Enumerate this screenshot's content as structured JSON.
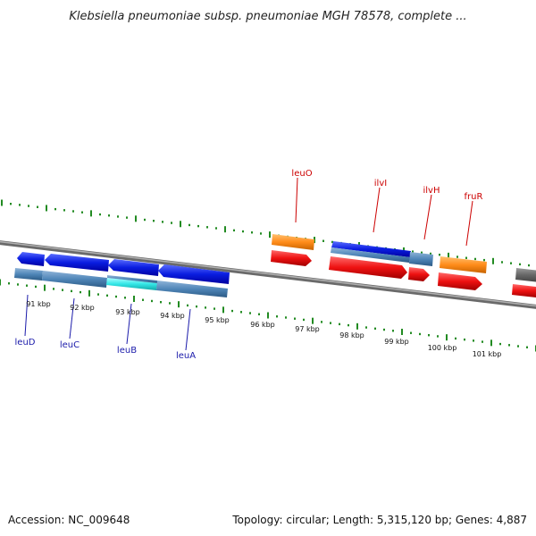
{
  "title": "Klebsiella pneumoniae subsp. pneumoniae MGH 78578, complete ...",
  "footer": {
    "accession": "Accession: NC_009648",
    "summary": "Topology: circular; Length: 5,315,120 bp; Genes: 4,887"
  },
  "ruler": [
    {
      "label": "91 kbp"
    },
    {
      "label": "92 kbp"
    },
    {
      "label": "93 kbp"
    },
    {
      "label": "94 kbp"
    },
    {
      "label": "95 kbp"
    },
    {
      "label": "96 kbp"
    },
    {
      "label": "97 kbp"
    },
    {
      "label": "98 kbp"
    },
    {
      "label": "99 kbp"
    },
    {
      "label": "100 kbp"
    },
    {
      "label": "101 kbp"
    }
  ],
  "genes_top": [
    {
      "name": "leuO",
      "color": "#cc0000"
    },
    {
      "name": "ilvI",
      "color": "#cc0000"
    },
    {
      "name": "ilvH",
      "color": "#cc0000"
    },
    {
      "name": "fruR",
      "color": "#cc0000"
    }
  ],
  "genes_bottom": [
    {
      "name": "leuD",
      "color": "#1a1aaa"
    },
    {
      "name": "leuC",
      "color": "#1a1aaa"
    },
    {
      "name": "leuB",
      "color": "#1a1aaa"
    },
    {
      "name": "leuA",
      "color": "#1a1aaa"
    }
  ],
  "colors": {
    "backbone": "#808080",
    "tick": "#228b22",
    "gene_forward": "#ee1111",
    "gene_reverse": "#1a1aee",
    "cds_reverse": "#4f86b8",
    "regulatory": "#ff8c1a",
    "highlight": "#33e6e6"
  }
}
